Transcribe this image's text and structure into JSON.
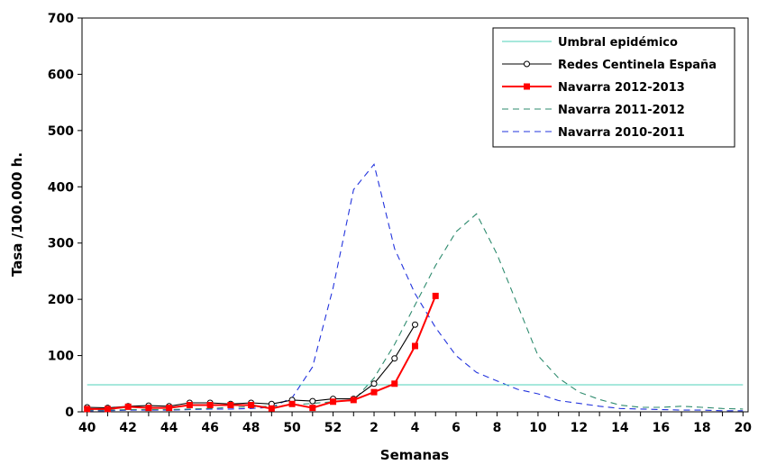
{
  "chart_data": {
    "type": "line",
    "xlabel": "Semanas",
    "ylabel": "Tasa /100.000 h.",
    "ylim": [
      0,
      700
    ],
    "yticks": [
      "0",
      "100",
      "200",
      "300",
      "400",
      "500",
      "600",
      "700"
    ],
    "weeks": [
      "40",
      "41",
      "42",
      "43",
      "44",
      "45",
      "46",
      "47",
      "48",
      "49",
      "50",
      "51",
      "52",
      "1",
      "2",
      "3",
      "4",
      "5",
      "6",
      "7",
      "8",
      "9",
      "10",
      "11",
      "12",
      "13",
      "14",
      "15",
      "16",
      "17",
      "18",
      "19",
      "20"
    ],
    "xtick_labels": [
      "40",
      "42",
      "44",
      "46",
      "48",
      "50",
      "52",
      "2",
      "4",
      "6",
      "8",
      "10",
      "12",
      "14",
      "16",
      "18",
      "20"
    ],
    "legend_position": "top-right",
    "series": [
      {
        "name": "Umbral epidémico",
        "color": "#4fd1b8",
        "style": "solid",
        "marker": "none",
        "values": [
          48,
          48,
          48,
          48,
          48,
          48,
          48,
          48,
          48,
          48,
          48,
          48,
          48,
          48,
          48,
          48,
          48,
          48,
          48,
          48,
          48,
          48,
          48,
          48,
          48,
          48,
          48,
          48,
          48,
          48,
          48,
          48,
          48
        ]
      },
      {
        "name": "Redes Centinela España",
        "color": "#000000",
        "style": "solid",
        "marker": "circle",
        "values": [
          8,
          7,
          10,
          11,
          10,
          16,
          16,
          14,
          16,
          14,
          21,
          19,
          23,
          23,
          50,
          95,
          155,
          null,
          null,
          null,
          null,
          null,
          null,
          null,
          null,
          null,
          null,
          null,
          null,
          null,
          null,
          null,
          null
        ]
      },
      {
        "name": "Navarra 2012-2013",
        "color": "#ff0000",
        "style": "solid",
        "marker": "square",
        "values": [
          5,
          5,
          9,
          7,
          7,
          12,
          12,
          12,
          12,
          6,
          14,
          7,
          18,
          21,
          35,
          50,
          117,
          206,
          null,
          null,
          null,
          null,
          null,
          null,
          null,
          null,
          null,
          null,
          null,
          null,
          null,
          null,
          null
        ]
      },
      {
        "name": "Navarra 2011-2012",
        "color": "#2e8b6e",
        "style": "dashed",
        "marker": "none",
        "values": [
          3,
          3,
          4,
          4,
          4,
          5,
          6,
          8,
          9,
          10,
          12,
          15,
          18,
          20,
          60,
          120,
          190,
          260,
          320,
          352,
          280,
          190,
          100,
          60,
          35,
          22,
          12,
          8,
          8,
          10,
          8,
          6,
          5
        ]
      },
      {
        "name": "Navarra 2010-2011",
        "color": "#2233dd",
        "style": "dashed",
        "marker": "none",
        "values": [
          2,
          2,
          3,
          3,
          3,
          4,
          5,
          5,
          6,
          8,
          25,
          80,
          220,
          395,
          440,
          290,
          210,
          150,
          100,
          70,
          55,
          40,
          32,
          20,
          15,
          10,
          6,
          5,
          4,
          3,
          3,
          2,
          2
        ]
      }
    ]
  }
}
